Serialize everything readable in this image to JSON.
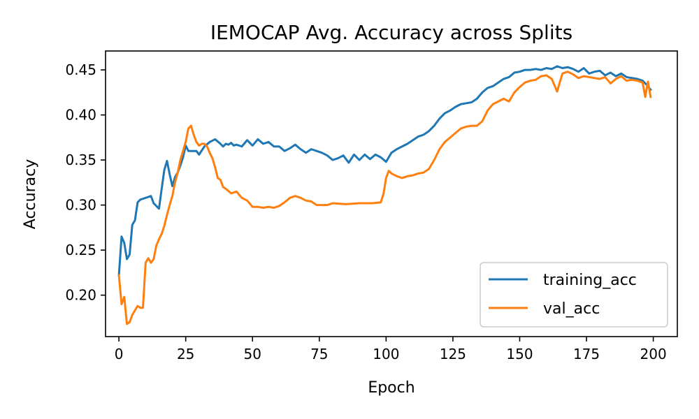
{
  "chart_data": {
    "type": "line",
    "title": "IEMOCAP Avg. Accuracy across Splits",
    "xlabel": "Epoch",
    "ylabel": "Accuracy",
    "xlim": [
      -5,
      209
    ],
    "ylim": [
      0.154,
      0.471
    ],
    "xticks": [
      0,
      25,
      50,
      75,
      100,
      125,
      150,
      175,
      200
    ],
    "yticks": [
      0.2,
      0.25,
      0.3,
      0.35,
      0.4,
      0.45
    ],
    "xtick_labels": [
      "0",
      "25",
      "50",
      "75",
      "100",
      "125",
      "150",
      "175",
      "200"
    ],
    "ytick_labels": [
      "0.20",
      "0.25",
      "0.30",
      "0.35",
      "0.40",
      "0.45"
    ],
    "grid": false,
    "legend_position": "lower-right",
    "series": [
      {
        "name": "training_acc",
        "color": "#1f77b4",
        "x": [
          0,
          1,
          2,
          3,
          4,
          5,
          6,
          7,
          8,
          10,
          12,
          13,
          14,
          15,
          16,
          17,
          18,
          19,
          20,
          21,
          22,
          23,
          24,
          25,
          26,
          27,
          28,
          29,
          30,
          32,
          34,
          36,
          38,
          39,
          40,
          41,
          42,
          43,
          44,
          46,
          48,
          50,
          52,
          54,
          56,
          58,
          60,
          62,
          64,
          66,
          68,
          70,
          72,
          74,
          76,
          78,
          80,
          82,
          84,
          86,
          88,
          90,
          92,
          94,
          96,
          98,
          100,
          102,
          104,
          106,
          108,
          110,
          112,
          114,
          116,
          118,
          120,
          122,
          124,
          126,
          128,
          130,
          132,
          134,
          136,
          138,
          140,
          142,
          144,
          146,
          148,
          150,
          152,
          154,
          156,
          158,
          160,
          162,
          164,
          166,
          168,
          170,
          172,
          174,
          176,
          178,
          180,
          182,
          184,
          186,
          188,
          190,
          192,
          194,
          196,
          198,
          199
        ],
        "y": [
          0.222,
          0.265,
          0.258,
          0.24,
          0.245,
          0.278,
          0.283,
          0.303,
          0.306,
          0.308,
          0.31,
          0.302,
          0.299,
          0.296,
          0.318,
          0.339,
          0.349,
          0.334,
          0.321,
          0.331,
          0.336,
          0.344,
          0.353,
          0.366,
          0.36,
          0.36,
          0.36,
          0.36,
          0.356,
          0.365,
          0.37,
          0.373,
          0.368,
          0.365,
          0.368,
          0.367,
          0.369,
          0.366,
          0.367,
          0.365,
          0.372,
          0.366,
          0.373,
          0.368,
          0.37,
          0.365,
          0.365,
          0.36,
          0.363,
          0.367,
          0.362,
          0.358,
          0.362,
          0.36,
          0.358,
          0.355,
          0.35,
          0.352,
          0.355,
          0.347,
          0.356,
          0.35,
          0.356,
          0.351,
          0.356,
          0.353,
          0.348,
          0.358,
          0.362,
          0.365,
          0.368,
          0.372,
          0.376,
          0.378,
          0.382,
          0.388,
          0.396,
          0.402,
          0.405,
          0.409,
          0.412,
          0.413,
          0.414,
          0.418,
          0.425,
          0.43,
          0.432,
          0.436,
          0.44,
          0.442,
          0.447,
          0.448,
          0.45,
          0.45,
          0.451,
          0.45,
          0.452,
          0.451,
          0.454,
          0.452,
          0.453,
          0.451,
          0.448,
          0.452,
          0.446,
          0.448,
          0.449,
          0.444,
          0.447,
          0.443,
          0.446,
          0.442,
          0.441,
          0.44,
          0.438,
          0.432,
          0.428
        ]
      },
      {
        "name": "val_acc",
        "color": "#ff7f0e",
        "x": [
          0,
          1,
          2,
          3,
          4,
          5,
          6,
          7,
          8,
          9,
          10,
          11,
          12,
          13,
          14,
          15,
          16,
          17,
          18,
          19,
          20,
          21,
          22,
          23,
          24,
          25,
          26,
          27,
          28,
          29,
          30,
          31,
          32,
          33,
          34,
          35,
          36,
          37,
          38,
          39,
          40,
          42,
          44,
          46,
          48,
          50,
          52,
          54,
          56,
          58,
          60,
          62,
          64,
          66,
          68,
          70,
          72,
          74,
          76,
          78,
          80,
          85,
          90,
          95,
          98,
          99,
          100,
          101,
          102,
          104,
          106,
          108,
          110,
          112,
          114,
          116,
          118,
          120,
          122,
          124,
          126,
          128,
          130,
          132,
          134,
          136,
          138,
          140,
          142,
          144,
          146,
          148,
          150,
          152,
          154,
          156,
          158,
          160,
          162,
          164,
          166,
          168,
          170,
          172,
          174,
          176,
          178,
          180,
          182,
          184,
          186,
          188,
          190,
          192,
          194,
          196,
          197,
          198,
          199
        ],
        "y": [
          0.222,
          0.19,
          0.198,
          0.168,
          0.17,
          0.178,
          0.183,
          0.188,
          0.186,
          0.186,
          0.236,
          0.241,
          0.236,
          0.24,
          0.255,
          0.262,
          0.268,
          0.277,
          0.289,
          0.3,
          0.31,
          0.325,
          0.336,
          0.35,
          0.36,
          0.37,
          0.385,
          0.388,
          0.378,
          0.37,
          0.366,
          0.368,
          0.368,
          0.365,
          0.358,
          0.352,
          0.342,
          0.33,
          0.328,
          0.32,
          0.318,
          0.313,
          0.315,
          0.308,
          0.305,
          0.298,
          0.298,
          0.297,
          0.298,
          0.297,
          0.299,
          0.303,
          0.308,
          0.31,
          0.308,
          0.305,
          0.304,
          0.3,
          0.3,
          0.3,
          0.302,
          0.301,
          0.302,
          0.302,
          0.303,
          0.312,
          0.33,
          0.338,
          0.335,
          0.332,
          0.33,
          0.332,
          0.333,
          0.335,
          0.336,
          0.34,
          0.35,
          0.362,
          0.37,
          0.375,
          0.38,
          0.385,
          0.387,
          0.388,
          0.388,
          0.393,
          0.405,
          0.412,
          0.415,
          0.418,
          0.415,
          0.425,
          0.431,
          0.436,
          0.438,
          0.439,
          0.443,
          0.444,
          0.44,
          0.426,
          0.446,
          0.448,
          0.445,
          0.441,
          0.443,
          0.442,
          0.441,
          0.44,
          0.442,
          0.435,
          0.44,
          0.443,
          0.438,
          0.439,
          0.438,
          0.436,
          0.42,
          0.437,
          0.42
        ]
      }
    ]
  }
}
